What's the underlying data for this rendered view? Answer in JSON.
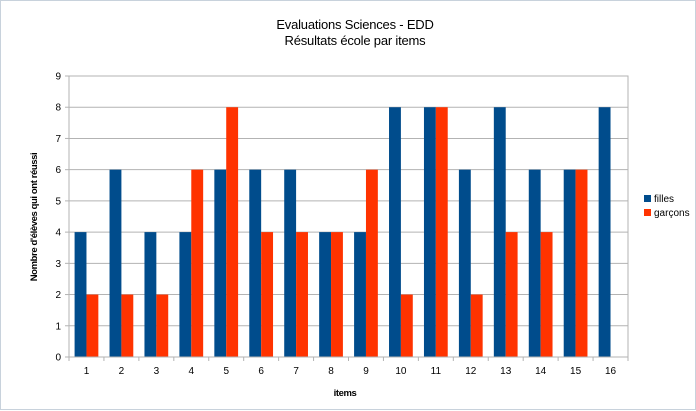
{
  "chart_data": {
    "type": "bar",
    "title": "Evaluations Sciences - EDD",
    "subtitle": "Résultats école par items",
    "xlabel": "items",
    "ylabel": "Nombre d'élèves qui ont réussi",
    "categories": [
      "1",
      "2",
      "3",
      "4",
      "5",
      "6",
      "7",
      "8",
      "9",
      "10",
      "11",
      "12",
      "13",
      "14",
      "15",
      "16"
    ],
    "series": [
      {
        "name": "filles",
        "color": "#004c8c",
        "values": [
          4,
          6,
          4,
          4,
          6,
          6,
          6,
          4,
          4,
          8,
          8,
          6,
          8,
          6,
          6,
          8
        ]
      },
      {
        "name": "garçons",
        "color": "#ff3300",
        "values": [
          2,
          2,
          2,
          6,
          8,
          4,
          4,
          4,
          6,
          2,
          8,
          2,
          4,
          4,
          6,
          0
        ]
      }
    ],
    "ylim": [
      0,
      9
    ],
    "yticks": [
      0,
      1,
      2,
      3,
      4,
      5,
      6,
      7,
      8,
      9
    ],
    "grid": true,
    "legend_position": "right"
  }
}
